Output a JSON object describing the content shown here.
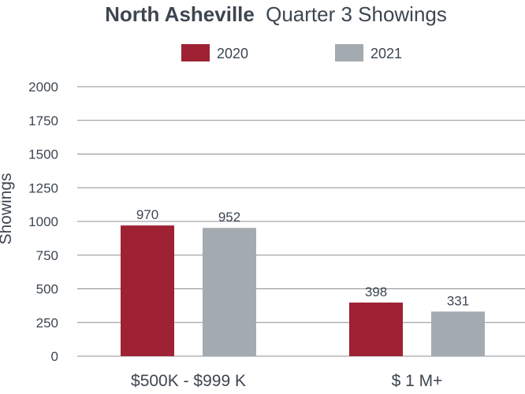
{
  "chart_data": {
    "type": "bar",
    "title_bold": "North Asheville",
    "title_rest": "Quarter 3 Showings",
    "ylabel": "Showings",
    "xlabel": "",
    "categories": [
      "$500K - $999 K",
      "$ 1 M+"
    ],
    "series": [
      {
        "name": "2020",
        "values": [
          970,
          398
        ],
        "color": "#9e2233"
      },
      {
        "name": "2021",
        "values": [
          952,
          331
        ],
        "color": "#a3abb1"
      }
    ],
    "data_labels": [
      [
        "970",
        "952"
      ],
      [
        "398",
        "331"
      ]
    ],
    "yticks": [
      0,
      250,
      500,
      750,
      1000,
      1250,
      1500,
      1750,
      2000
    ],
    "ytick_labels": [
      "0",
      "250",
      "500",
      "750",
      "1000",
      "1250",
      "1500",
      "1750",
      "2000"
    ],
    "ylim": [
      0,
      2000
    ],
    "grid": true,
    "legend_position": "top-center"
  }
}
